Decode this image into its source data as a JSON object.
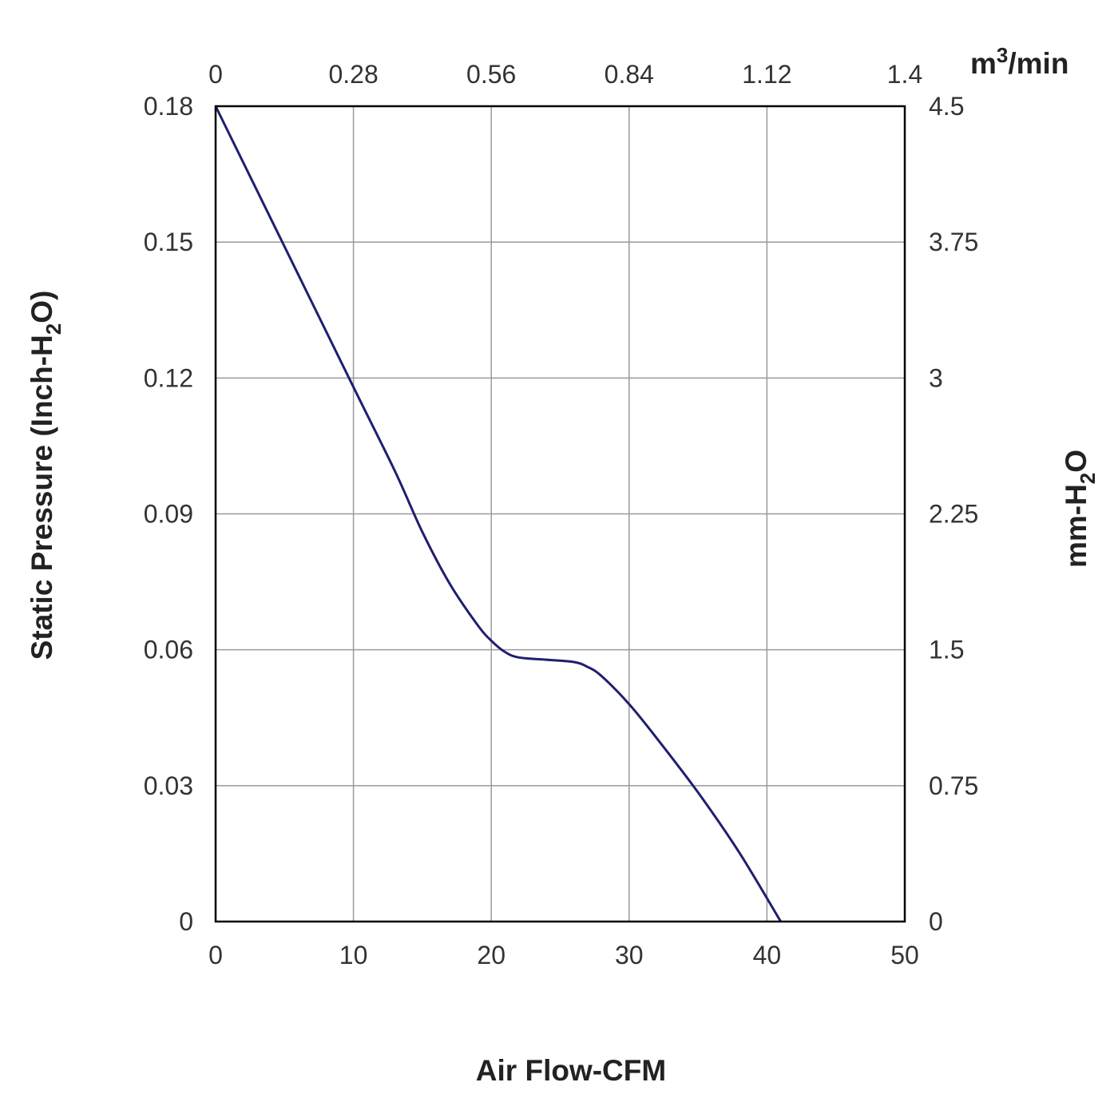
{
  "chart_data": {
    "type": "line",
    "title": "",
    "xlabel": "Air Flow-CFM",
    "ylabel_left": {
      "prefix": "Static Pressure (Inch-H",
      "subscript": "2",
      "suffix": "O)"
    },
    "ylabel_right": {
      "prefix": "mm-H",
      "subscript": "2",
      "suffix": "O"
    },
    "top_axis_unit": {
      "prefix": "m",
      "superscript": "3",
      "suffix": "/min"
    },
    "xlim": [
      0,
      50
    ],
    "ylim": [
      0,
      0.18
    ],
    "x_ticks": [
      "0",
      "10",
      "20",
      "30",
      "40",
      "50"
    ],
    "y_ticks_left": [
      "0",
      "0.03",
      "0.06",
      "0.09",
      "0.12",
      "0.15",
      "0.18"
    ],
    "y_ticks_right": [
      "0",
      "0.75",
      "1.5",
      "2.25",
      "3",
      "3.75",
      "4.5"
    ],
    "x_ticks_top": [
      "0",
      "0.28",
      "0.56",
      "0.84",
      "1.12",
      "1.4"
    ],
    "grid": true,
    "line_color": "#1f1f6e",
    "series": [
      {
        "name": "Static Pressure",
        "x": [
          0,
          5,
          10,
          13,
          15,
          17,
          19,
          20,
          21,
          22,
          24,
          26,
          27,
          28,
          30,
          32,
          35,
          38,
          41
        ],
        "y": [
          0.18,
          0.149,
          0.118,
          0.0995,
          0.086,
          0.0745,
          0.0655,
          0.062,
          0.0595,
          0.0583,
          0.0578,
          0.0573,
          0.0562,
          0.0542,
          0.048,
          0.0405,
          0.0285,
          0.0152,
          0.0
        ]
      }
    ]
  }
}
